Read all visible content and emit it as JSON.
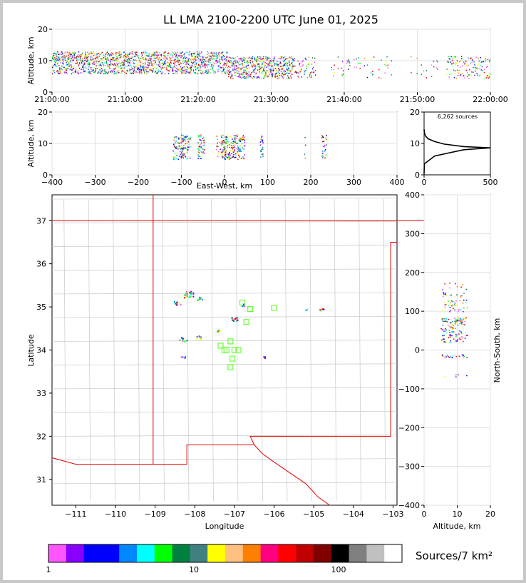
{
  "title": "LL LMA 2100-2200 UTC June 01, 2025",
  "chart_data": [
    {
      "type": "scatter",
      "panel": "time-height",
      "ylabel": "Altitude, km",
      "ylim": [
        0,
        20
      ],
      "yticks": [
        "0",
        "10",
        "20"
      ],
      "xticks": [
        "21:00:00",
        "21:10:00",
        "21:20:00",
        "21:30:00",
        "21:40:00",
        "21:50:00",
        "22:00:00"
      ],
      "grid": true
    },
    {
      "type": "scatter",
      "panel": "east-west-height",
      "xlabel": "East-West, km",
      "ylabel": "Altitude, km",
      "xlim": [
        -400,
        400
      ],
      "ylim": [
        0,
        20
      ],
      "xticks": [
        "−400",
        "−300",
        "−200",
        "−100",
        "0",
        "100",
        "200",
        "300",
        "400"
      ],
      "yticks": [
        "0",
        "10",
        "20"
      ],
      "grid": true
    },
    {
      "type": "line",
      "panel": "source-histogram",
      "annotation": "6,262 sources",
      "xlim": [
        0,
        500
      ],
      "ylim": [
        0,
        20
      ],
      "xticks": [
        "0",
        "500"
      ],
      "yticks": [
        "0",
        "10",
        "20"
      ],
      "profile": [
        [
          0,
          0.3
        ],
        [
          2,
          3.5
        ],
        [
          80,
          6
        ],
        [
          300,
          8
        ],
        [
          500,
          8.6
        ],
        [
          300,
          9
        ],
        [
          150,
          9.8
        ],
        [
          80,
          10.6
        ],
        [
          30,
          11.5
        ],
        [
          10,
          12.4
        ],
        [
          2,
          13.5
        ],
        [
          0,
          14.5
        ]
      ]
    },
    {
      "type": "scatter",
      "panel": "plan-view",
      "xlabel": "Longitude",
      "ylabel": "Latitude",
      "xlim": [
        -111.6,
        -102.9
      ],
      "ylim": [
        30.4,
        37.6
      ],
      "xticks": [
        "−111",
        "−110",
        "−109",
        "−108",
        "−107",
        "−106",
        "−105",
        "−104",
        "−103"
      ],
      "yticks": [
        "31",
        "32",
        "33",
        "34",
        "35",
        "36",
        "37"
      ],
      "stations": [
        [
          -107.2,
          34.0
        ],
        [
          -107.1,
          34.2
        ],
        [
          -107.0,
          34.0
        ],
        [
          -107.1,
          33.6
        ],
        [
          -106.6,
          34.95
        ],
        [
          -106.0,
          34.98
        ],
        [
          -106.8,
          35.1
        ],
        [
          -107.35,
          34.1
        ],
        [
          -107.25,
          34.0
        ],
        [
          -106.9,
          34.0
        ],
        [
          -107.05,
          33.8
        ],
        [
          -106.7,
          34.65
        ]
      ]
    },
    {
      "type": "scatter",
      "panel": "north-south-height",
      "xlabel": "Altitude, km",
      "ylabel": "North-South, km",
      "xlim": [
        0,
        20
      ],
      "ylim": [
        -400,
        400
      ],
      "xticks": [
        "0",
        "10",
        "20"
      ],
      "yticks": [
        "400",
        "300",
        "200",
        "100",
        "0",
        "−100",
        "−200",
        "−300",
        "−400"
      ],
      "grid": true
    }
  ],
  "colorbar": {
    "label": "Sources/7 km²",
    "ticks": [
      "1",
      "10",
      "100"
    ],
    "colors": [
      "#ff55ff",
      "#8800ff",
      "#0000ff",
      "#0000ff",
      "#0088ff",
      "#00ffff",
      "#00ff00",
      "#008040",
      "#408080",
      "#ffff00",
      "#ffc080",
      "#ff8000",
      "#ff0080",
      "#ff0000",
      "#c00000",
      "#800000",
      "#000000",
      "#808080",
      "#c0c0c0",
      "#ffffff"
    ]
  }
}
